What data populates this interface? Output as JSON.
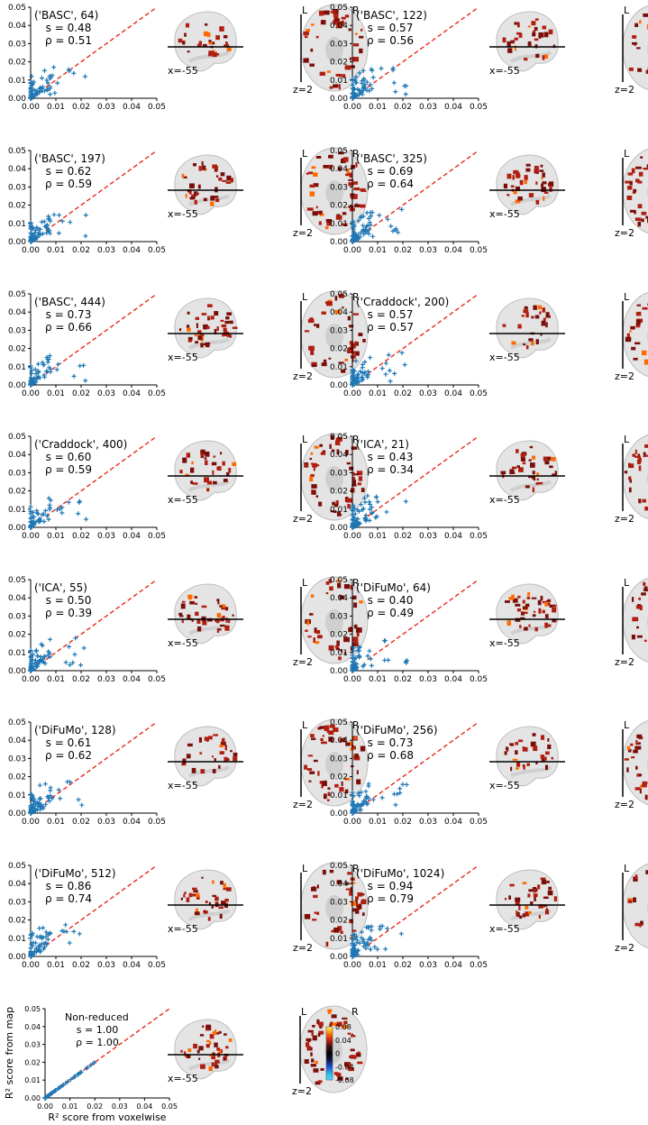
{
  "colors": {
    "points": "#1f77b4",
    "diagonal": "#e8291c",
    "brain_bg": "#e4e4e4",
    "blob_dark": "#7a0f0a",
    "blob_mid": "#b01e10",
    "blob_hot": "#ff6a00"
  },
  "shared": {
    "x_ticks": [
      "0.00",
      "0.01",
      "0.02",
      "0.03",
      "0.04",
      "0.05"
    ],
    "y_ticks": [
      "0.00",
      "0.01",
      "0.02",
      "0.03",
      "0.04",
      "0.05"
    ],
    "sagittal_label": "x=-55",
    "axial_label": "z=2",
    "left_marker": "L",
    "right_marker": "R"
  },
  "xlabel": "R² score from voxelwise",
  "ylabel": "R² score from map",
  "colorbar": {
    "ticks": [
      "0.08",
      "0.04",
      "0",
      "-0.04",
      "-0.08"
    ],
    "colors": [
      "#ffff66",
      "#ff7a00",
      "#c81e12",
      "#3a1010",
      "#000000",
      "#0a1440",
      "#1a4fd8",
      "#2bb5e8",
      "#4be1ff"
    ]
  },
  "chart_data": [
    {
      "type": "scatter",
      "title": "('BASC', 64)",
      "s": "s = 0.48",
      "rho": "ρ = 0.51",
      "xlim": [
        0,
        0.05
      ],
      "ylim": [
        0,
        0.05
      ]
    },
    {
      "type": "scatter",
      "title": "('BASC', 122)",
      "s": "s = 0.57",
      "rho": "ρ = 0.56",
      "xlim": [
        0,
        0.05
      ],
      "ylim": [
        0,
        0.05
      ]
    },
    {
      "type": "scatter",
      "title": "('BASC', 197)",
      "s": "s = 0.62",
      "rho": "ρ = 0.59",
      "xlim": [
        0,
        0.05
      ],
      "ylim": [
        0,
        0.05
      ]
    },
    {
      "type": "scatter",
      "title": "('BASC', 325)",
      "s": "s = 0.69",
      "rho": "ρ = 0.64",
      "xlim": [
        0,
        0.05
      ],
      "ylim": [
        0,
        0.05
      ]
    },
    {
      "type": "scatter",
      "title": "('BASC', 444)",
      "s": "s = 0.73",
      "rho": "ρ = 0.66",
      "xlim": [
        0,
        0.05
      ],
      "ylim": [
        0,
        0.05
      ]
    },
    {
      "type": "scatter",
      "title": "('Craddock', 200)",
      "s": "s = 0.57",
      "rho": "ρ = 0.57",
      "xlim": [
        0,
        0.05
      ],
      "ylim": [
        0,
        0.05
      ]
    },
    {
      "type": "scatter",
      "title": "('Craddock', 400)",
      "s": "s = 0.60",
      "rho": "ρ = 0.59",
      "xlim": [
        0,
        0.05
      ],
      "ylim": [
        0,
        0.05
      ]
    },
    {
      "type": "scatter",
      "title": "('ICA', 21)",
      "s": "s = 0.43",
      "rho": "ρ = 0.34",
      "xlim": [
        0,
        0.05
      ],
      "ylim": [
        0,
        0.05
      ]
    },
    {
      "type": "scatter",
      "title": "('ICA', 55)",
      "s": "s = 0.50",
      "rho": "ρ = 0.39",
      "xlim": [
        0,
        0.05
      ],
      "ylim": [
        0,
        0.05
      ]
    },
    {
      "type": "scatter",
      "title": "('DiFuMo', 64)",
      "s": "s = 0.40",
      "rho": "ρ = 0.49",
      "xlim": [
        0,
        0.05
      ],
      "ylim": [
        0,
        0.05
      ]
    },
    {
      "type": "scatter",
      "title": "('DiFuMo', 128)",
      "s": "s = 0.61",
      "rho": "ρ = 0.62",
      "xlim": [
        0,
        0.05
      ],
      "ylim": [
        0,
        0.05
      ]
    },
    {
      "type": "scatter",
      "title": "('DiFuMo', 256)",
      "s": "s = 0.73",
      "rho": "ρ = 0.68",
      "xlim": [
        0,
        0.05
      ],
      "ylim": [
        0,
        0.05
      ]
    },
    {
      "type": "scatter",
      "title": "('DiFuMo', 512)",
      "s": "s = 0.86",
      "rho": "ρ = 0.74",
      "xlim": [
        0,
        0.05
      ],
      "ylim": [
        0,
        0.05
      ]
    },
    {
      "type": "scatter",
      "title": "('DiFuMo', 1024)",
      "s": "s = 0.94",
      "rho": "ρ = 0.79",
      "xlim": [
        0,
        0.05
      ],
      "ylim": [
        0,
        0.05
      ]
    },
    {
      "type": "scatter",
      "title": "Non-reduced",
      "s": "s = 1.00",
      "rho": "ρ = 1.00",
      "xlim": [
        0,
        0.05
      ],
      "ylim": [
        0,
        0.05
      ]
    }
  ]
}
